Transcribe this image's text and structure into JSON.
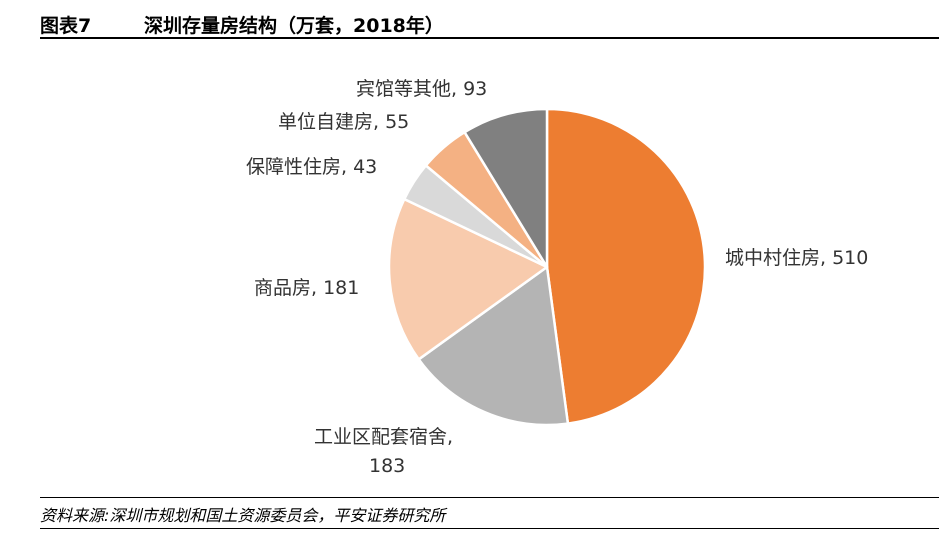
{
  "title": {
    "figure_number": "图表7",
    "text": "深圳存量房结构（万套，2018年）"
  },
  "chart_data": {
    "type": "pie",
    "title": "深圳存量房结构（万套，2018年）",
    "unit": "万套",
    "slices": [
      {
        "label": "城中村住房",
        "value": 510,
        "color": "#ED7D31"
      },
      {
        "label": "工业区配套宿舍",
        "value": 183,
        "color": "#B4B4B4"
      },
      {
        "label": "商品房",
        "value": 181,
        "color": "#F8CBAD"
      },
      {
        "label": "保障性住房",
        "value": 43,
        "color": "#D9D9D9"
      },
      {
        "label": "单位自建房",
        "value": 55,
        "color": "#F4B183"
      },
      {
        "label": "宾馆等其他",
        "value": 93,
        "color": "#808080"
      }
    ],
    "start_angle": "12 o'clock",
    "direction": "clockwise",
    "data_labels": [
      "城中村住房, 510",
      "工业区配套宿舍,",
      "183",
      "商品房, 181",
      "保障性住房, 43",
      "单位自建房, 55",
      "宾馆等其他, 93"
    ]
  },
  "source": "资料来源:深圳市规划和国土资源委员会，平安证券研究所"
}
